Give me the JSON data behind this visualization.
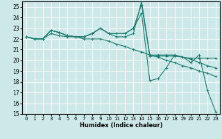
{
  "title": "",
  "xlabel": "Humidex (Indice chaleur)",
  "ylabel": "",
  "bg_color": "#cce8e8",
  "grid_color": "#ffffff",
  "line_color": "#1a7a6e",
  "xlim": [
    -0.5,
    23.5
  ],
  "ylim": [
    15,
    25.5
  ],
  "yticks": [
    15,
    16,
    17,
    18,
    19,
    20,
    21,
    22,
    23,
    24,
    25
  ],
  "xticks": [
    0,
    1,
    2,
    3,
    4,
    5,
    6,
    7,
    8,
    9,
    10,
    11,
    12,
    13,
    14,
    15,
    16,
    17,
    18,
    19,
    20,
    21,
    22,
    23
  ],
  "series": [
    {
      "x": [
        0,
        1,
        2,
        3,
        4,
        5,
        6,
        7,
        8,
        9,
        10,
        11,
        12,
        13,
        14,
        15,
        16,
        17,
        18,
        19,
        20,
        21,
        22,
        23
      ],
      "y": [
        22.2,
        22.0,
        22.0,
        22.8,
        22.6,
        22.3,
        22.2,
        22.2,
        22.5,
        23.0,
        22.5,
        22.5,
        22.5,
        23.0,
        24.4,
        18.1,
        18.3,
        19.3,
        20.5,
        20.3,
        19.8,
        20.5,
        17.2,
        15.2
      ]
    },
    {
      "x": [
        0,
        1,
        2,
        3,
        4,
        5,
        6,
        7,
        8,
        9,
        10,
        11,
        12,
        13,
        14,
        15,
        16,
        17,
        18,
        19,
        20,
        21,
        22,
        23
      ],
      "y": [
        22.2,
        22.0,
        22.0,
        22.8,
        22.6,
        22.3,
        22.2,
        22.2,
        22.5,
        23.0,
        22.5,
        22.5,
        22.5,
        23.0,
        25.2,
        20.4,
        20.4,
        20.4,
        20.4,
        20.3,
        20.2,
        20.2,
        20.2,
        20.2
      ]
    },
    {
      "x": [
        0,
        1,
        2,
        3,
        4,
        5,
        6,
        7,
        8,
        9,
        10,
        11,
        12,
        13,
        14,
        15,
        16,
        17,
        18,
        19,
        20,
        21,
        22,
        23
      ],
      "y": [
        22.2,
        22.0,
        22.0,
        22.8,
        22.6,
        22.3,
        22.2,
        22.2,
        22.5,
        23.0,
        22.5,
        22.2,
        22.2,
        22.5,
        25.5,
        20.5,
        20.5,
        20.5,
        20.5,
        20.3,
        20.1,
        19.8,
        19.5,
        19.3
      ]
    },
    {
      "x": [
        0,
        1,
        2,
        3,
        4,
        5,
        6,
        7,
        8,
        9,
        10,
        11,
        12,
        13,
        14,
        15,
        16,
        17,
        18,
        19,
        20,
        21,
        22,
        23
      ],
      "y": [
        22.2,
        22.0,
        22.0,
        22.5,
        22.3,
        22.2,
        22.2,
        22.0,
        22.0,
        22.0,
        21.8,
        21.5,
        21.3,
        21.0,
        20.8,
        20.5,
        20.3,
        20.0,
        19.8,
        19.5,
        19.3,
        19.0,
        18.8,
        18.5
      ]
    }
  ]
}
